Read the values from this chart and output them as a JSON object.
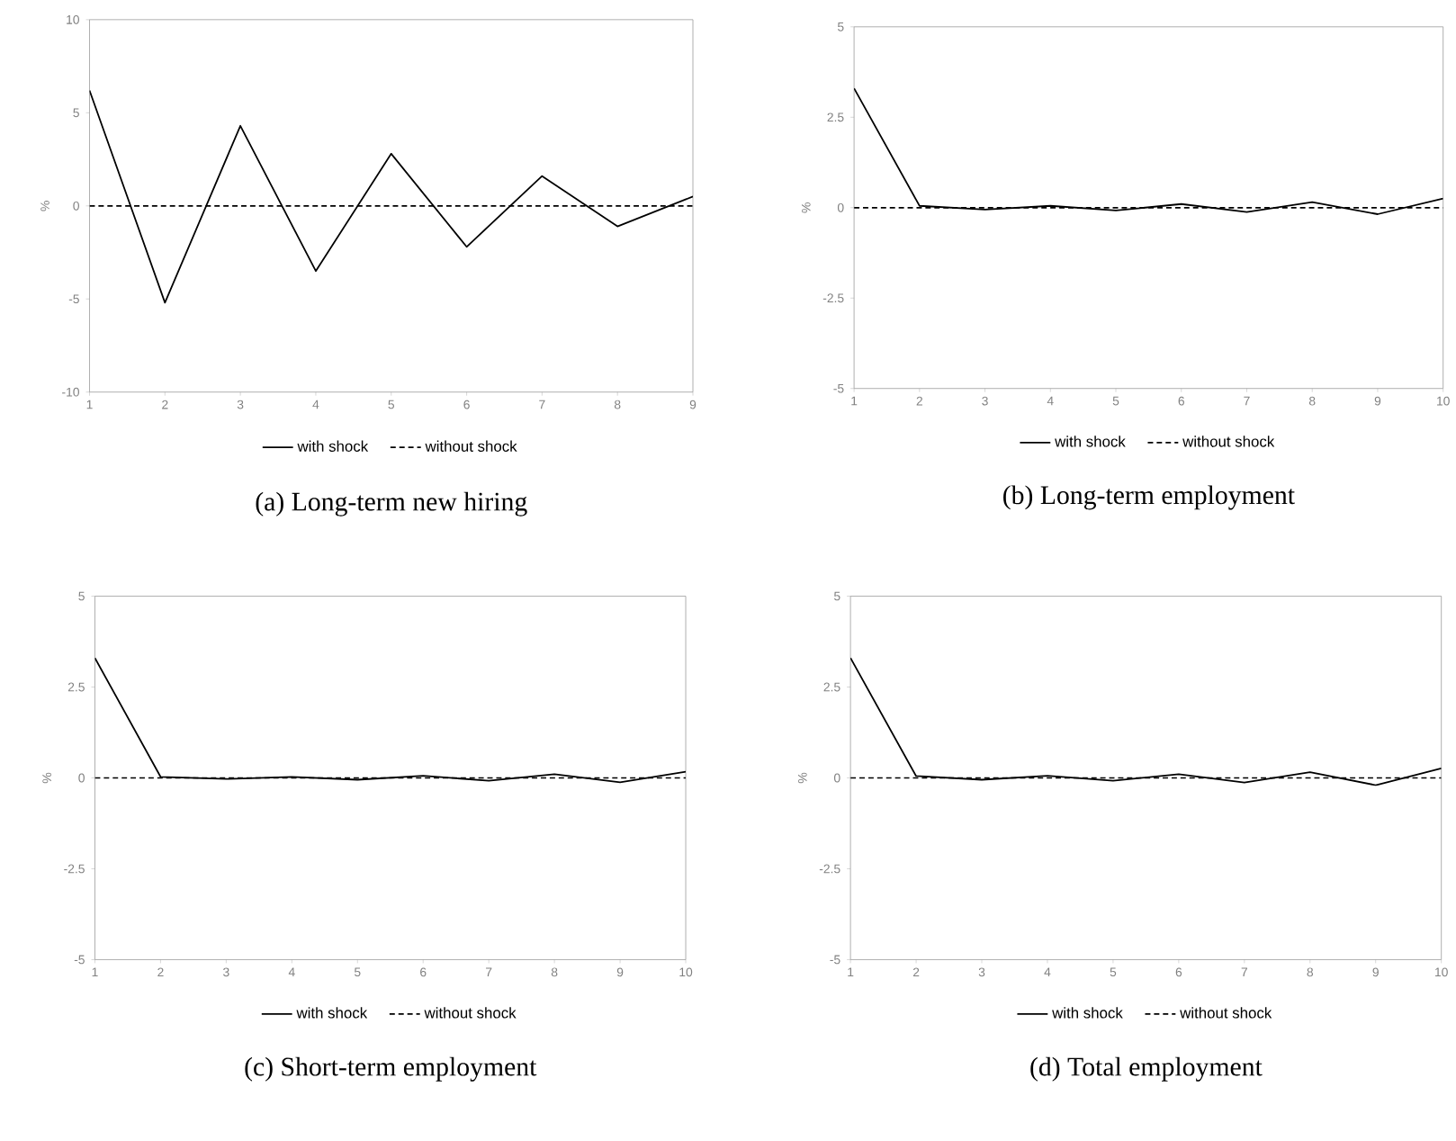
{
  "chart_data": [
    {
      "type": "line",
      "title": "(a) Long-term new hiring",
      "ylabel": "%",
      "x": [
        1,
        2,
        3,
        4,
        5,
        6,
        7,
        8,
        9
      ],
      "xlim": [
        1,
        9
      ],
      "xticks": [
        1,
        2,
        3,
        4,
        5,
        6,
        7,
        8,
        9
      ],
      "ylim": [
        -10,
        10
      ],
      "yticks": [
        -10,
        -5,
        0,
        5,
        10
      ],
      "legend": "bottom",
      "series": [
        {
          "name": "with shock",
          "color": "#000000",
          "line_style": "solid",
          "values": [
            6.2,
            -5.2,
            4.3,
            -3.5,
            2.8,
            -2.2,
            1.6,
            -1.1,
            0.5
          ]
        },
        {
          "name": "without shock",
          "color": "#000000",
          "line_style": "dashed",
          "values": [
            0,
            0,
            0,
            0,
            0,
            0,
            0,
            0,
            0
          ]
        }
      ]
    },
    {
      "type": "line",
      "title": "(b) Long-term employment",
      "ylabel": "%",
      "x": [
        1,
        2,
        3,
        4,
        5,
        6,
        7,
        8,
        9,
        10
      ],
      "xlim": [
        1,
        10
      ],
      "xticks": [
        1,
        2,
        3,
        4,
        5,
        6,
        7,
        8,
        9,
        10
      ],
      "ylim": [
        -5,
        5
      ],
      "yticks": [
        -5,
        -2.5,
        0,
        2.5,
        5
      ],
      "legend": "bottom",
      "series": [
        {
          "name": "with shock",
          "color": "#000000",
          "line_style": "solid",
          "values": [
            3.3,
            0.05,
            -0.05,
            0.05,
            -0.08,
            0.1,
            -0.12,
            0.15,
            -0.18,
            0.25
          ]
        },
        {
          "name": "without shock",
          "color": "#000000",
          "line_style": "dashed",
          "values": [
            0,
            0,
            0,
            0,
            0,
            0,
            0,
            0,
            0,
            0
          ]
        }
      ]
    },
    {
      "type": "line",
      "title": "(c) Short-term employment",
      "ylabel": "%",
      "x": [
        1,
        2,
        3,
        4,
        5,
        6,
        7,
        8,
        9,
        10
      ],
      "xlim": [
        1,
        10
      ],
      "xticks": [
        1,
        2,
        3,
        4,
        5,
        6,
        7,
        8,
        9,
        10
      ],
      "ylim": [
        -5,
        5
      ],
      "yticks": [
        -5,
        -2.5,
        0,
        2.5,
        5
      ],
      "legend": "bottom",
      "series": [
        {
          "name": "with shock",
          "color": "#000000",
          "line_style": "solid",
          "values": [
            3.3,
            0.03,
            -0.03,
            0.03,
            -0.05,
            0.06,
            -0.08,
            0.1,
            -0.12,
            0.17
          ]
        },
        {
          "name": "without shock",
          "color": "#000000",
          "line_style": "dashed",
          "values": [
            0,
            0,
            0,
            0,
            0,
            0,
            0,
            0,
            0,
            0
          ]
        }
      ]
    },
    {
      "type": "line",
      "title": "(d) Total employment",
      "ylabel": "%",
      "x": [
        1,
        2,
        3,
        4,
        5,
        6,
        7,
        8,
        9,
        10
      ],
      "xlim": [
        1,
        10
      ],
      "xticks": [
        1,
        2,
        3,
        4,
        5,
        6,
        7,
        8,
        9,
        10
      ],
      "ylim": [
        -5,
        5
      ],
      "yticks": [
        -5,
        -2.5,
        0,
        2.5,
        5
      ],
      "legend": "bottom",
      "series": [
        {
          "name": "with shock",
          "color": "#000000",
          "line_style": "solid",
          "values": [
            3.3,
            0.05,
            -0.05,
            0.06,
            -0.08,
            0.1,
            -0.13,
            0.16,
            -0.2,
            0.26
          ]
        },
        {
          "name": "without shock",
          "color": "#000000",
          "line_style": "dashed",
          "values": [
            0,
            0,
            0,
            0,
            0,
            0,
            0,
            0,
            0,
            0
          ]
        }
      ]
    }
  ]
}
